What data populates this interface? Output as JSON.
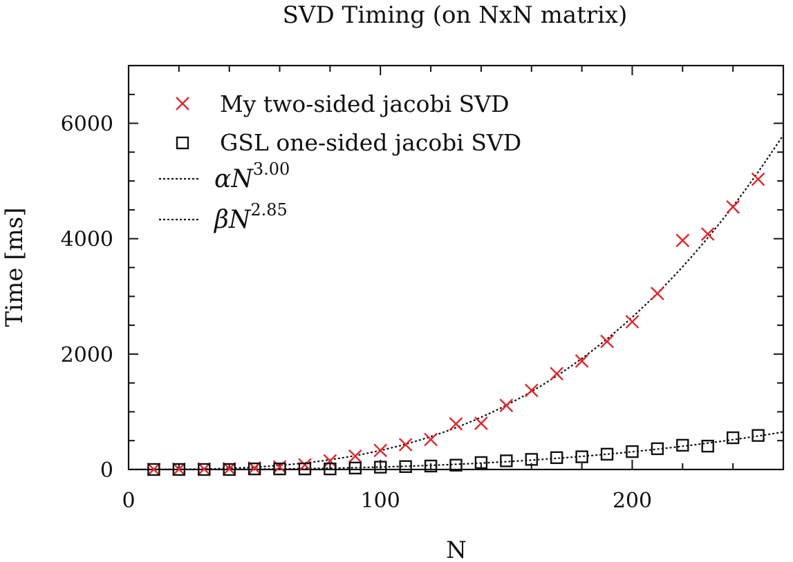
{
  "chart_data": {
    "type": "scatter",
    "title": "SVD Timing (on NxN matrix)",
    "xlabel": "N",
    "ylabel": "Time [ms]",
    "xlim": [
      0,
      260
    ],
    "ylim": [
      0,
      7000
    ],
    "x_ticks": [
      "0",
      "100",
      "200"
    ],
    "y_ticks": [
      "0",
      "2000",
      "4000",
      "6000"
    ],
    "grid": false,
    "legend_position": "top-left",
    "series": [
      {
        "name": "My two-sided jacobi SVD",
        "marker": "x",
        "color": "#e3262a",
        "x": [
          10,
          20,
          30,
          40,
          50,
          60,
          70,
          80,
          90,
          100,
          110,
          120,
          130,
          140,
          150,
          160,
          170,
          180,
          190,
          200,
          210,
          220,
          230,
          240,
          250
        ],
        "y": [
          2,
          5,
          8,
          12,
          25,
          45,
          80,
          150,
          230,
          330,
          430,
          520,
          790,
          800,
          1110,
          1370,
          1660,
          1880,
          2220,
          2560,
          3050,
          3970,
          4080,
          4550,
          5030
        ]
      },
      {
        "name": "GSL one-sided jacobi SVD",
        "marker": "square",
        "color": "#111111",
        "x": [
          10,
          20,
          30,
          40,
          50,
          60,
          70,
          80,
          90,
          100,
          110,
          120,
          130,
          140,
          150,
          160,
          170,
          180,
          190,
          200,
          210,
          220,
          230,
          240,
          250
        ],
        "y": [
          0,
          0,
          0,
          0,
          10,
          10,
          10,
          10,
          25,
          40,
          50,
          60,
          75,
          120,
          150,
          175,
          205,
          220,
          265,
          310,
          360,
          420,
          405,
          550,
          590
        ]
      }
    ],
    "fits": [
      {
        "name_symbol": "α",
        "name_var": "N",
        "exponent": "3.00",
        "coefficient": 0.00033,
        "power": 3.0,
        "style": "dotted",
        "color": "#111111"
      },
      {
        "name_symbol": "β",
        "name_var": "N",
        "exponent": "2.85",
        "coefficient": 8.5e-05,
        "power": 2.85,
        "style": "dotted",
        "color": "#111111"
      }
    ]
  }
}
